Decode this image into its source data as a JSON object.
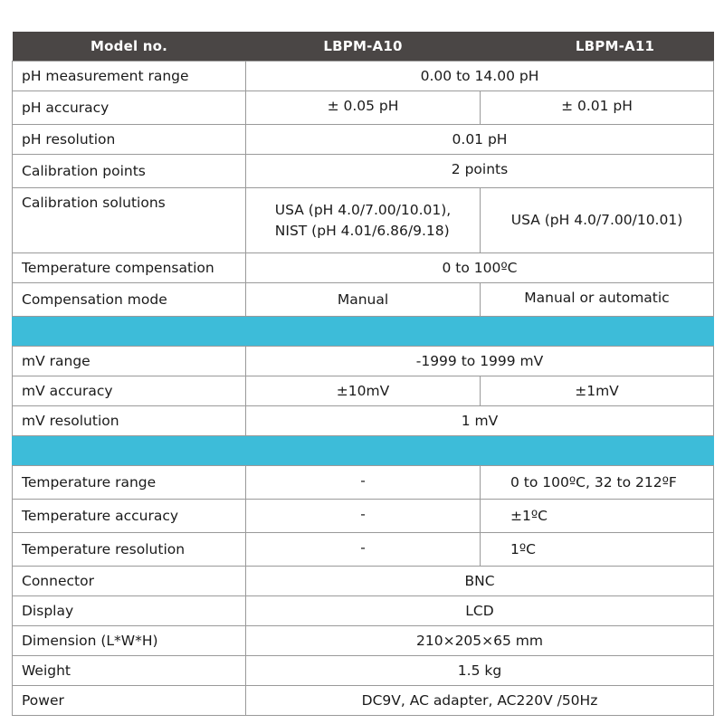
{
  "header": {
    "model_label": "Model no.",
    "models": [
      "LBPM-A10",
      "LBPM-A11"
    ]
  },
  "colors": {
    "header_bg": "#4a4645",
    "header_text": "#ffffff",
    "section_band": "#3dbcd9",
    "border": "#9a9a9a"
  },
  "ph_section": {
    "measurement_range": {
      "label": "pH measurement range",
      "value": "0.00 to 14.00 pH"
    },
    "accuracy": {
      "label": "pH accuracy",
      "a10": "± 0.05 pH",
      "a11": "± 0.01 pH"
    },
    "resolution": {
      "label": "pH resolution",
      "value": "0.01 pH"
    },
    "calibration_points": {
      "label": "Calibration points",
      "value": "2 points"
    },
    "calibration_solutions": {
      "label": "Calibration solutions",
      "a10": "USA (pH 4.0/7.00/10.01),\nNIST (pH 4.01/6.86/9.18)",
      "a11": "USA (pH 4.0/7.00/10.01)"
    },
    "temperature_compensation": {
      "label": "Temperature compensation",
      "value": "0 to 100ºC"
    },
    "compensation_mode": {
      "label": "Compensation mode",
      "a10": "Manual",
      "a11": "Manual or automatic"
    }
  },
  "mv_section": {
    "range": {
      "label": "mV range",
      "value": "-1999 to 1999 mV"
    },
    "accuracy": {
      "label": "mV accuracy",
      "a10": "±10mV",
      "a11": "±1mV"
    },
    "resolution": {
      "label": "mV resolution",
      "value": "1 mV"
    }
  },
  "temperature_section": {
    "range": {
      "label": "Temperature range",
      "a10": "-",
      "a11": "0 to 100ºC, 32 to 212ºF"
    },
    "accuracy": {
      "label": "Temperature accuracy",
      "a10": "-",
      "a11": "±1ºC"
    },
    "resolution": {
      "label": "Temperature resolution",
      "a10": "-",
      "a11": "1ºC"
    }
  },
  "general": {
    "connector": {
      "label": "Connector",
      "value": "BNC"
    },
    "display": {
      "label": "Display",
      "value": "LCD"
    },
    "dimension": {
      "label": "Dimension (L*W*H)",
      "value": "210×205×65 mm"
    },
    "weight": {
      "label": "Weight",
      "value": "1.5 kg"
    },
    "power": {
      "label": "Power",
      "value": "DC9V, AC adapter, AC220V /50Hz"
    }
  }
}
